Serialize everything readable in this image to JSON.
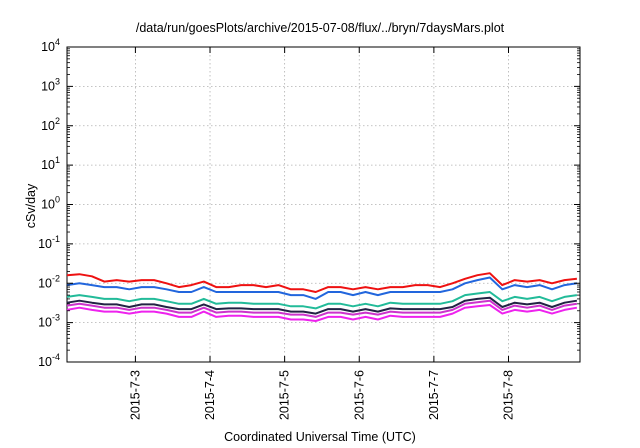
{
  "chart_data": {
    "type": "line",
    "title": "/data/run/goesPlots/archive/2015-07-08/flux/../bryn/7daysMars.plot",
    "xlabel": "Coordinated Universal Time (UTC)",
    "ylabel": "cSv/day",
    "yscale": "log",
    "ylim": [
      0.0001,
      10000
    ],
    "y_ticks": [
      {
        "base": "10",
        "exp": "-4",
        "value": 0.0001
      },
      {
        "base": "10",
        "exp": "-3",
        "value": 0.001
      },
      {
        "base": "10",
        "exp": "-2",
        "value": 0.01
      },
      {
        "base": "10",
        "exp": "-1",
        "value": 0.1
      },
      {
        "base": "10",
        "exp": "0",
        "value": 1
      },
      {
        "base": "10",
        "exp": "1",
        "value": 10
      },
      {
        "base": "10",
        "exp": "2",
        "value": 100
      },
      {
        "base": "10",
        "exp": "3",
        "value": 1000
      },
      {
        "base": "10",
        "exp": "4",
        "value": 10000
      }
    ],
    "xlim": [
      "2015-07-02 02:00",
      "2015-07-08 23:00"
    ],
    "x_ticks": [
      "2015-7-3",
      "2015-7-4",
      "2015-7-5",
      "2015-7-6",
      "2015-7-7",
      "2015-7-8"
    ],
    "x_tick_dates": [
      "2015-07-03",
      "2015-07-04",
      "2015-07-05",
      "2015-07-06",
      "2015-07-07",
      "2015-07-08"
    ],
    "grid": true,
    "legend": "none",
    "x": [
      "2015-07-02 02:00",
      "2015-07-02 06:00",
      "2015-07-02 10:00",
      "2015-07-02 14:00",
      "2015-07-02 18:00",
      "2015-07-02 22:00",
      "2015-07-03 02:00",
      "2015-07-03 06:00",
      "2015-07-03 10:00",
      "2015-07-03 14:00",
      "2015-07-03 18:00",
      "2015-07-03 22:00",
      "2015-07-04 02:00",
      "2015-07-04 06:00",
      "2015-07-04 10:00",
      "2015-07-04 14:00",
      "2015-07-04 18:00",
      "2015-07-04 22:00",
      "2015-07-05 02:00",
      "2015-07-05 06:00",
      "2015-07-05 10:00",
      "2015-07-05 14:00",
      "2015-07-05 18:00",
      "2015-07-05 22:00",
      "2015-07-06 02:00",
      "2015-07-06 06:00",
      "2015-07-06 10:00",
      "2015-07-06 14:00",
      "2015-07-06 18:00",
      "2015-07-06 22:00",
      "2015-07-07 02:00",
      "2015-07-07 06:00",
      "2015-07-07 10:00",
      "2015-07-07 14:00",
      "2015-07-07 18:00",
      "2015-07-07 22:00",
      "2015-07-08 02:00",
      "2015-07-08 06:00",
      "2015-07-08 10:00",
      "2015-07-08 14:00",
      "2015-07-08 18:00",
      "2015-07-08 22:00"
    ],
    "series": [
      {
        "color": "#ee1111",
        "values": [
          0.016,
          0.017,
          0.015,
          0.011,
          0.012,
          0.011,
          0.012,
          0.012,
          0.01,
          0.008,
          0.009,
          0.011,
          0.008,
          0.008,
          0.009,
          0.009,
          0.008,
          0.009,
          0.007,
          0.007,
          0.006,
          0.008,
          0.008,
          0.007,
          0.008,
          0.007,
          0.008,
          0.008,
          0.009,
          0.009,
          0.008,
          0.01,
          0.013,
          0.016,
          0.018,
          0.009,
          0.012,
          0.011,
          0.012,
          0.01,
          0.012,
          0.013
        ]
      },
      {
        "color": "#2266dd",
        "values": [
          0.009,
          0.01,
          0.009,
          0.008,
          0.008,
          0.007,
          0.008,
          0.008,
          0.007,
          0.006,
          0.006,
          0.008,
          0.006,
          0.006,
          0.006,
          0.006,
          0.006,
          0.006,
          0.005,
          0.005,
          0.004,
          0.006,
          0.006,
          0.005,
          0.006,
          0.005,
          0.006,
          0.006,
          0.006,
          0.006,
          0.006,
          0.007,
          0.01,
          0.012,
          0.014,
          0.007,
          0.009,
          0.008,
          0.009,
          0.007,
          0.009,
          0.01
        ]
      },
      {
        "color": "#22bb99",
        "values": [
          0.0045,
          0.005,
          0.0045,
          0.004,
          0.004,
          0.0035,
          0.004,
          0.004,
          0.0035,
          0.003,
          0.003,
          0.004,
          0.003,
          0.0032,
          0.0032,
          0.003,
          0.003,
          0.003,
          0.0026,
          0.0026,
          0.0023,
          0.003,
          0.003,
          0.0026,
          0.003,
          0.0026,
          0.0032,
          0.003,
          0.003,
          0.003,
          0.003,
          0.0035,
          0.005,
          0.0055,
          0.006,
          0.0035,
          0.0045,
          0.004,
          0.0045,
          0.0035,
          0.0045,
          0.005
        ]
      },
      {
        "color": "#222244",
        "values": [
          0.0032,
          0.0036,
          0.0032,
          0.0029,
          0.0029,
          0.0025,
          0.0029,
          0.0029,
          0.0025,
          0.0022,
          0.0022,
          0.0029,
          0.0022,
          0.0023,
          0.0023,
          0.0022,
          0.0022,
          0.0022,
          0.0019,
          0.0019,
          0.0017,
          0.0022,
          0.0022,
          0.0019,
          0.0022,
          0.0019,
          0.0023,
          0.0022,
          0.0022,
          0.0022,
          0.0022,
          0.0025,
          0.0036,
          0.004,
          0.0043,
          0.0025,
          0.0032,
          0.0029,
          0.0032,
          0.0025,
          0.0032,
          0.0036
        ]
      },
      {
        "color": "#cc33cc",
        "values": [
          0.0027,
          0.003,
          0.0027,
          0.0024,
          0.0024,
          0.0021,
          0.0024,
          0.0024,
          0.0021,
          0.0018,
          0.0018,
          0.0024,
          0.0018,
          0.0019,
          0.0019,
          0.0018,
          0.0018,
          0.0018,
          0.0016,
          0.0016,
          0.0014,
          0.0018,
          0.0018,
          0.0016,
          0.0018,
          0.0016,
          0.0019,
          0.0018,
          0.0018,
          0.0018,
          0.0018,
          0.0021,
          0.003,
          0.0033,
          0.0036,
          0.0021,
          0.0027,
          0.0024,
          0.0027,
          0.0021,
          0.0027,
          0.003
        ]
      },
      {
        "color": "#ee22ee",
        "values": [
          0.0021,
          0.0024,
          0.0021,
          0.0019,
          0.0019,
          0.0017,
          0.0019,
          0.0019,
          0.0017,
          0.0014,
          0.0014,
          0.0019,
          0.0014,
          0.0015,
          0.0015,
          0.0014,
          0.0014,
          0.0014,
          0.0012,
          0.0012,
          0.0011,
          0.0014,
          0.0014,
          0.0012,
          0.0014,
          0.0012,
          0.0015,
          0.0014,
          0.0014,
          0.0014,
          0.0014,
          0.0017,
          0.0024,
          0.0026,
          0.0028,
          0.0017,
          0.0021,
          0.0019,
          0.0021,
          0.0017,
          0.0021,
          0.0024
        ]
      }
    ]
  }
}
